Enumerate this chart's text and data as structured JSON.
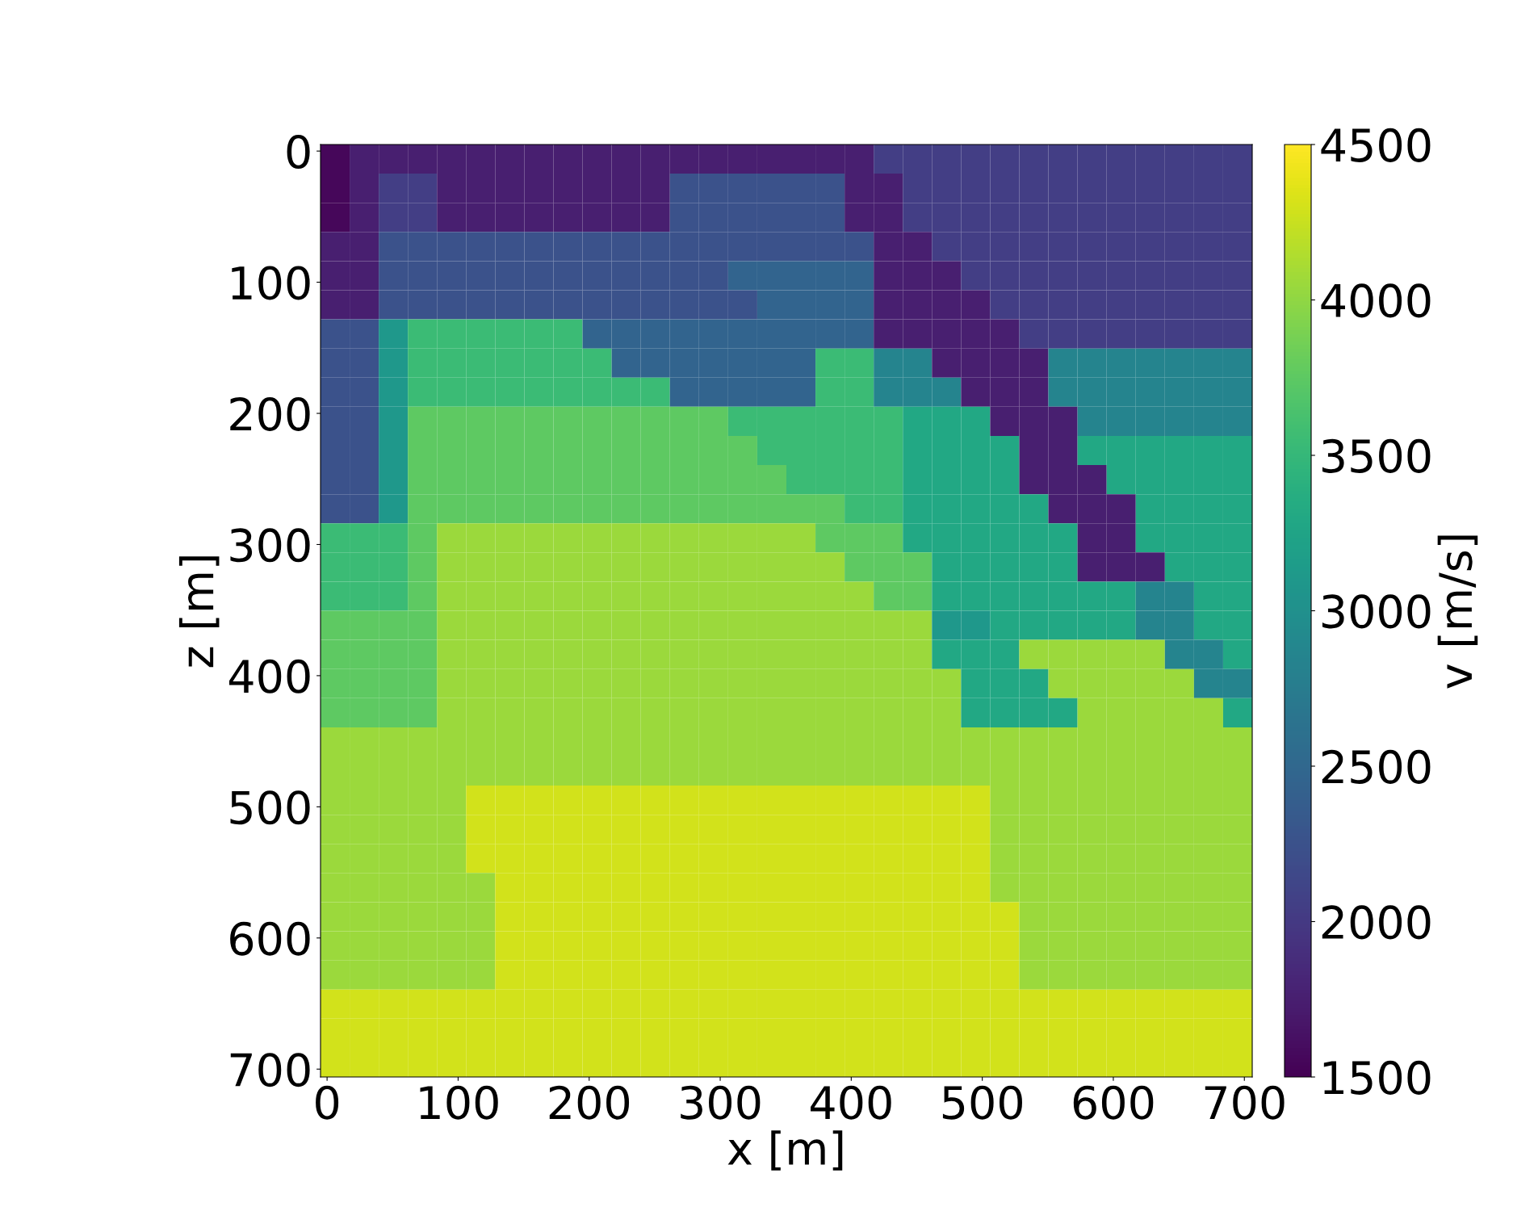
{
  "chart_data": {
    "type": "heatmap",
    "xlabel": "x [m]",
    "ylabel": "z [m]",
    "clabel": "v [m/s]",
    "xlim": [
      -5,
      706
    ],
    "ylim": [
      706,
      -5
    ],
    "xticks": [
      0,
      100,
      200,
      300,
      400,
      500,
      600,
      700
    ],
    "yticks": [
      0,
      100,
      200,
      300,
      400,
      500,
      600,
      700
    ],
    "clim": [
      1500,
      4500
    ],
    "cticks": [
      1500,
      2000,
      2500,
      3000,
      3500,
      4000,
      4500
    ],
    "cells": [
      [
        1550,
        1750,
        1750,
        1750,
        1750,
        1750,
        1750,
        1750,
        1750,
        1750,
        1750,
        1750,
        1750,
        1750,
        1750,
        1750,
        1750,
        1750,
        1750,
        2050,
        2050,
        2050,
        2050,
        2050,
        2050,
        2050,
        2050,
        2050,
        2050,
        2050,
        2050,
        2050
      ],
      [
        1550,
        1750,
        2050,
        2050,
        1750,
        1750,
        1750,
        1750,
        1750,
        1750,
        1750,
        1750,
        2250,
        2250,
        2250,
        2250,
        2250,
        2250,
        1750,
        1750,
        2050,
        2050,
        2050,
        2050,
        2050,
        2050,
        2050,
        2050,
        2050,
        2050,
        2050,
        2050
      ],
      [
        1550,
        1750,
        2050,
        2050,
        1750,
        1750,
        1750,
        1750,
        1750,
        1750,
        1750,
        1750,
        2250,
        2250,
        2250,
        2250,
        2250,
        2250,
        1750,
        1750,
        2050,
        2050,
        2050,
        2050,
        2050,
        2050,
        2050,
        2050,
        2050,
        2050,
        2050,
        2050
      ],
      [
        1750,
        1750,
        2250,
        2250,
        2250,
        2250,
        2250,
        2250,
        2250,
        2250,
        2250,
        2250,
        2250,
        2250,
        2250,
        2250,
        2250,
        2250,
        2250,
        1750,
        1750,
        2050,
        2050,
        2050,
        2050,
        2050,
        2050,
        2050,
        2050,
        2050,
        2050,
        2050
      ],
      [
        1750,
        1750,
        2250,
        2250,
        2250,
        2250,
        2250,
        2250,
        2250,
        2250,
        2250,
        2250,
        2250,
        2250,
        2450,
        2450,
        2450,
        2450,
        2450,
        1750,
        1750,
        1750,
        2050,
        2050,
        2050,
        2050,
        2050,
        2050,
        2050,
        2050,
        2050,
        2050
      ],
      [
        1750,
        1750,
        2250,
        2250,
        2250,
        2250,
        2250,
        2250,
        2250,
        2250,
        2250,
        2250,
        2250,
        2250,
        2250,
        2450,
        2450,
        2450,
        2450,
        1750,
        1750,
        1750,
        1750,
        2050,
        2050,
        2050,
        2050,
        2050,
        2050,
        2050,
        2050,
        2050
      ],
      [
        2250,
        2250,
        3100,
        3550,
        3550,
        3550,
        3550,
        3550,
        3550,
        2450,
        2450,
        2450,
        2450,
        2450,
        2450,
        2450,
        2450,
        2450,
        2450,
        1750,
        1750,
        1750,
        1750,
        1750,
        2050,
        2050,
        2050,
        2050,
        2050,
        2050,
        2050,
        2050
      ],
      [
        2250,
        2250,
        3100,
        3550,
        3550,
        3550,
        3550,
        3550,
        3550,
        3550,
        2450,
        2450,
        2450,
        2450,
        2450,
        2450,
        2450,
        3550,
        3550,
        2850,
        2850,
        1750,
        1750,
        1750,
        1750,
        2850,
        2850,
        2850,
        2850,
        2850,
        2850,
        2850
      ],
      [
        2250,
        2250,
        3100,
        3550,
        3550,
        3550,
        3550,
        3550,
        3550,
        3550,
        3550,
        3550,
        2450,
        2450,
        2450,
        2450,
        2450,
        3550,
        3550,
        2850,
        2850,
        2850,
        1750,
        1750,
        1750,
        2850,
        2850,
        2850,
        2850,
        2850,
        2850,
        2850
      ],
      [
        2250,
        2250,
        3100,
        3750,
        3750,
        3750,
        3750,
        3750,
        3750,
        3750,
        3750,
        3750,
        3750,
        3750,
        3550,
        3550,
        3550,
        3550,
        3550,
        3550,
        3300,
        3300,
        3300,
        1750,
        1750,
        1750,
        2850,
        2850,
        2850,
        2850,
        2850,
        2850
      ],
      [
        2250,
        2250,
        3100,
        3750,
        3750,
        3750,
        3750,
        3750,
        3750,
        3750,
        3750,
        3750,
        3750,
        3750,
        3750,
        3550,
        3550,
        3550,
        3550,
        3550,
        3300,
        3300,
        3300,
        3300,
        1750,
        1750,
        3300,
        3300,
        3300,
        3300,
        3300,
        3300
      ],
      [
        2250,
        2250,
        3100,
        3750,
        3750,
        3750,
        3750,
        3750,
        3750,
        3750,
        3750,
        3750,
        3750,
        3750,
        3750,
        3750,
        3550,
        3550,
        3550,
        3550,
        3300,
        3300,
        3300,
        3300,
        1750,
        1750,
        1750,
        3300,
        3300,
        3300,
        3300,
        3300
      ],
      [
        2250,
        2250,
        3100,
        3750,
        3750,
        3750,
        3750,
        3750,
        3750,
        3750,
        3750,
        3750,
        3750,
        3750,
        3750,
        3750,
        3750,
        3750,
        3550,
        3550,
        3300,
        3300,
        3300,
        3300,
        3300,
        1750,
        1750,
        1750,
        3300,
        3300,
        3300,
        3300
      ],
      [
        3550,
        3550,
        3550,
        3750,
        4050,
        4050,
        4050,
        4050,
        4050,
        4050,
        4050,
        4050,
        4050,
        4050,
        4050,
        4050,
        4050,
        3750,
        3750,
        3750,
        3300,
        3300,
        3300,
        3300,
        3300,
        3300,
        1750,
        1750,
        3300,
        3300,
        3300,
        3300
      ],
      [
        3550,
        3550,
        3550,
        3750,
        4050,
        4050,
        4050,
        4050,
        4050,
        4050,
        4050,
        4050,
        4050,
        4050,
        4050,
        4050,
        4050,
        4050,
        3750,
        3750,
        3750,
        3300,
        3300,
        3300,
        3300,
        3300,
        1750,
        1750,
        1750,
        3300,
        3300,
        3300
      ],
      [
        3550,
        3550,
        3550,
        3750,
        4050,
        4050,
        4050,
        4050,
        4050,
        4050,
        4050,
        4050,
        4050,
        4050,
        4050,
        4050,
        4050,
        4050,
        4050,
        3750,
        3750,
        3300,
        3300,
        3300,
        3300,
        3300,
        3300,
        3300,
        2850,
        2850,
        3300,
        3300
      ],
      [
        3750,
        3750,
        3750,
        3750,
        4050,
        4050,
        4050,
        4050,
        4050,
        4050,
        4050,
        4050,
        4050,
        4050,
        4050,
        4050,
        4050,
        4050,
        4050,
        4050,
        4050,
        3100,
        3100,
        3300,
        3300,
        3300,
        3300,
        3300,
        2850,
        2850,
        3300,
        3300
      ],
      [
        3750,
        3750,
        3750,
        3750,
        4050,
        4050,
        4050,
        4050,
        4050,
        4050,
        4050,
        4050,
        4050,
        4050,
        4050,
        4050,
        4050,
        4050,
        4050,
        4050,
        4050,
        3300,
        3300,
        3300,
        4050,
        4050,
        4050,
        4050,
        4050,
        2850,
        2850,
        3300
      ],
      [
        3750,
        3750,
        3750,
        3750,
        4050,
        4050,
        4050,
        4050,
        4050,
        4050,
        4050,
        4050,
        4050,
        4050,
        4050,
        4050,
        4050,
        4050,
        4050,
        4050,
        4050,
        4050,
        3300,
        3300,
        3300,
        4050,
        4050,
        4050,
        4050,
        4050,
        2850,
        2850
      ],
      [
        3750,
        3750,
        3750,
        3750,
        4050,
        4050,
        4050,
        4050,
        4050,
        4050,
        4050,
        4050,
        4050,
        4050,
        4050,
        4050,
        4050,
        4050,
        4050,
        4050,
        4050,
        4050,
        3300,
        3300,
        3300,
        3300,
        4050,
        4050,
        4050,
        4050,
        4050,
        3300
      ],
      [
        4050,
        4050,
        4050,
        4050,
        4050,
        4050,
        4050,
        4050,
        4050,
        4050,
        4050,
        4050,
        4050,
        4050,
        4050,
        4050,
        4050,
        4050,
        4050,
        4050,
        4050,
        4050,
        4050,
        4050,
        4050,
        4050,
        4050,
        4050,
        4050,
        4050,
        4050,
        4050
      ],
      [
        4050,
        4050,
        4050,
        4050,
        4050,
        4050,
        4050,
        4050,
        4050,
        4050,
        4050,
        4050,
        4050,
        4050,
        4050,
        4050,
        4050,
        4050,
        4050,
        4050,
        4050,
        4050,
        4050,
        4050,
        4050,
        4050,
        4050,
        4050,
        4050,
        4050,
        4050,
        4050
      ],
      [
        4050,
        4050,
        4050,
        4050,
        4050,
        4300,
        4300,
        4300,
        4300,
        4300,
        4300,
        4300,
        4300,
        4300,
        4300,
        4300,
        4300,
        4300,
        4300,
        4300,
        4300,
        4300,
        4300,
        4050,
        4050,
        4050,
        4050,
        4050,
        4050,
        4050,
        4050,
        4050
      ],
      [
        4050,
        4050,
        4050,
        4050,
        4050,
        4300,
        4300,
        4300,
        4300,
        4300,
        4300,
        4300,
        4300,
        4300,
        4300,
        4300,
        4300,
        4300,
        4300,
        4300,
        4300,
        4300,
        4300,
        4050,
        4050,
        4050,
        4050,
        4050,
        4050,
        4050,
        4050,
        4050
      ],
      [
        4050,
        4050,
        4050,
        4050,
        4050,
        4300,
        4300,
        4300,
        4300,
        4300,
        4300,
        4300,
        4300,
        4300,
        4300,
        4300,
        4300,
        4300,
        4300,
        4300,
        4300,
        4300,
        4300,
        4050,
        4050,
        4050,
        4050,
        4050,
        4050,
        4050,
        4050,
        4050
      ],
      [
        4050,
        4050,
        4050,
        4050,
        4050,
        4050,
        4300,
        4300,
        4300,
        4300,
        4300,
        4300,
        4300,
        4300,
        4300,
        4300,
        4300,
        4300,
        4300,
        4300,
        4300,
        4300,
        4300,
        4050,
        4050,
        4050,
        4050,
        4050,
        4050,
        4050,
        4050,
        4050
      ],
      [
        4050,
        4050,
        4050,
        4050,
        4050,
        4050,
        4300,
        4300,
        4300,
        4300,
        4300,
        4300,
        4300,
        4300,
        4300,
        4300,
        4300,
        4300,
        4300,
        4300,
        4300,
        4300,
        4300,
        4300,
        4050,
        4050,
        4050,
        4050,
        4050,
        4050,
        4050,
        4050
      ],
      [
        4050,
        4050,
        4050,
        4050,
        4050,
        4050,
        4300,
        4300,
        4300,
        4300,
        4300,
        4300,
        4300,
        4300,
        4300,
        4300,
        4300,
        4300,
        4300,
        4300,
        4300,
        4300,
        4300,
        4300,
        4050,
        4050,
        4050,
        4050,
        4050,
        4050,
        4050,
        4050
      ],
      [
        4050,
        4050,
        4050,
        4050,
        4050,
        4050,
        4300,
        4300,
        4300,
        4300,
        4300,
        4300,
        4300,
        4300,
        4300,
        4300,
        4300,
        4300,
        4300,
        4300,
        4300,
        4300,
        4300,
        4300,
        4050,
        4050,
        4050,
        4050,
        4050,
        4050,
        4050,
        4050
      ],
      [
        4300,
        4300,
        4300,
        4300,
        4300,
        4300,
        4300,
        4300,
        4300,
        4300,
        4300,
        4300,
        4300,
        4300,
        4300,
        4300,
        4300,
        4300,
        4300,
        4300,
        4300,
        4300,
        4300,
        4300,
        4300,
        4300,
        4300,
        4300,
        4300,
        4300,
        4300,
        4300
      ],
      [
        4300,
        4300,
        4300,
        4300,
        4300,
        4300,
        4300,
        4300,
        4300,
        4300,
        4300,
        4300,
        4300,
        4300,
        4300,
        4300,
        4300,
        4300,
        4300,
        4300,
        4300,
        4300,
        4300,
        4300,
        4300,
        4300,
        4300,
        4300,
        4300,
        4300,
        4300,
        4300
      ],
      [
        4300,
        4300,
        4300,
        4300,
        4300,
        4300,
        4300,
        4300,
        4300,
        4300,
        4300,
        4300,
        4300,
        4300,
        4300,
        4300,
        4300,
        4300,
        4300,
        4300,
        4300,
        4300,
        4300,
        4300,
        4300,
        4300,
        4300,
        4300,
        4300,
        4300,
        4300,
        4300
      ]
    ]
  }
}
